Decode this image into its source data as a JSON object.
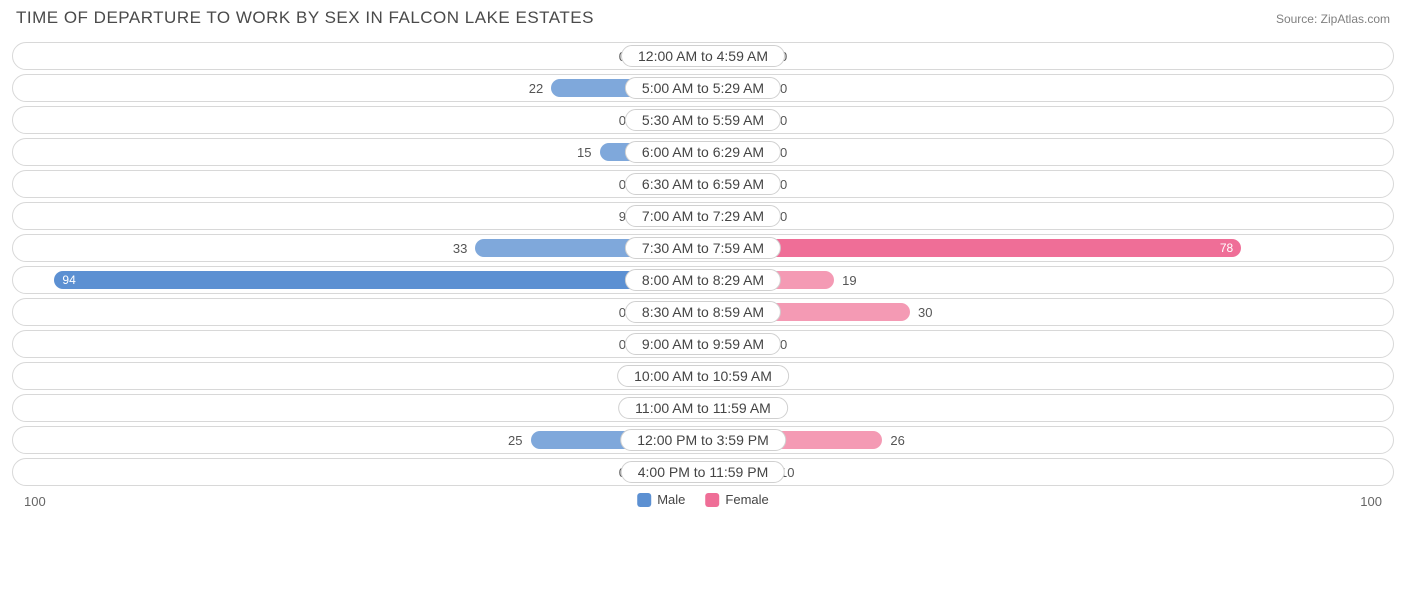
{
  "title": "TIME OF DEPARTURE TO WORK BY SEX IN FALCON LAKE ESTATES",
  "source": "Source: ZipAtlas.com",
  "scale_max": 100,
  "axis_left": "100",
  "axis_right": "100",
  "min_bar_pct": 10,
  "colors": {
    "male": "#7fa8db",
    "male_strong": "#5c90d2",
    "female": "#f49ab4",
    "female_strong": "#ef6e97",
    "row_border": "#d8d8d8",
    "background": "#ffffff",
    "text": "#4a4a4a"
  },
  "legend": [
    {
      "label": "Male",
      "color": "#5c90d2"
    },
    {
      "label": "Female",
      "color": "#ef6e97"
    }
  ],
  "rows": [
    {
      "label": "12:00 AM to 4:59 AM",
      "male": 0,
      "female": 0
    },
    {
      "label": "5:00 AM to 5:29 AM",
      "male": 22,
      "female": 0
    },
    {
      "label": "5:30 AM to 5:59 AM",
      "male": 0,
      "female": 0
    },
    {
      "label": "6:00 AM to 6:29 AM",
      "male": 15,
      "female": 0
    },
    {
      "label": "6:30 AM to 6:59 AM",
      "male": 0,
      "female": 0
    },
    {
      "label": "7:00 AM to 7:29 AM",
      "male": 9,
      "female": 0
    },
    {
      "label": "7:30 AM to 7:59 AM",
      "male": 33,
      "female": 78
    },
    {
      "label": "8:00 AM to 8:29 AM",
      "male": 94,
      "female": 19
    },
    {
      "label": "8:30 AM to 8:59 AM",
      "male": 0,
      "female": 30
    },
    {
      "label": "9:00 AM to 9:59 AM",
      "male": 0,
      "female": 0
    },
    {
      "label": "10:00 AM to 10:59 AM",
      "male": 0,
      "female": 0
    },
    {
      "label": "11:00 AM to 11:59 AM",
      "male": 0,
      "female": 0
    },
    {
      "label": "12:00 PM to 3:59 PM",
      "male": 25,
      "female": 26
    },
    {
      "label": "4:00 PM to 11:59 PM",
      "male": 0,
      "female": 10
    }
  ]
}
